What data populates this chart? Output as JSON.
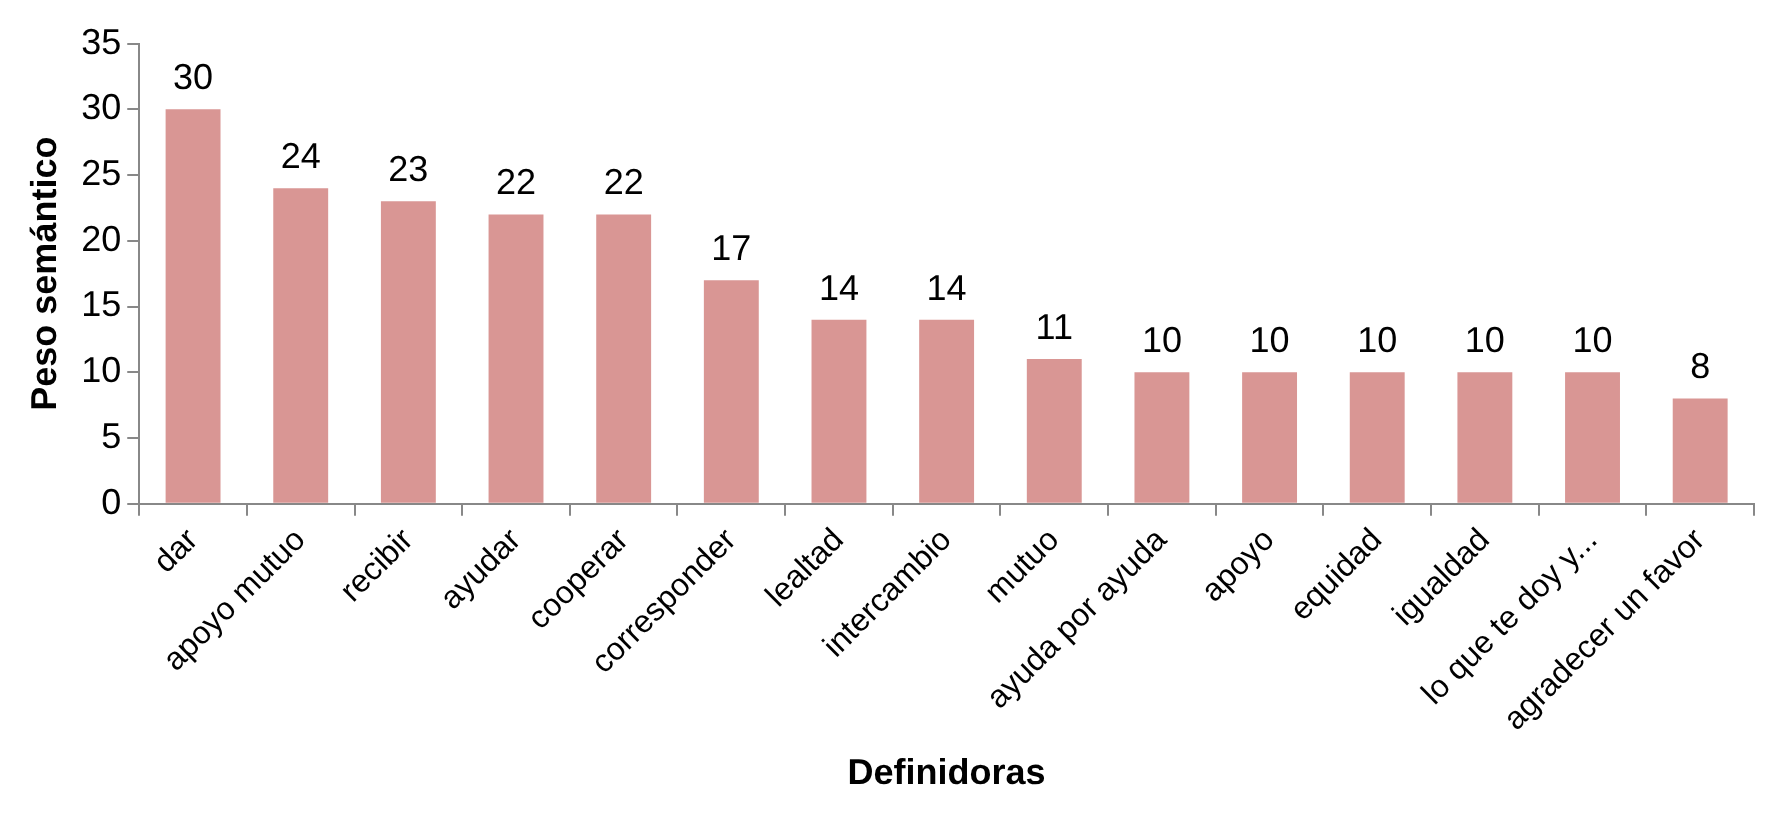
{
  "chart_data": {
    "type": "bar",
    "xlabel": "Definidoras",
    "ylabel": "Peso semántico",
    "categories": [
      "dar",
      "apoyo mutuo",
      "recibir",
      "ayudar",
      "cooperar",
      "corresponder",
      "lealtad",
      "intercambio",
      "mutuo",
      "ayuda por ayuda",
      "apoyo",
      "equidad",
      "igualdad",
      "lo que te doy y...",
      "agradecer un favor"
    ],
    "values": [
      30,
      24,
      23,
      22,
      22,
      17,
      14,
      14,
      11,
      10,
      10,
      10,
      10,
      10,
      8
    ],
    "color": "#d99694",
    "ylim": [
      0,
      35
    ],
    "yticks": [
      0,
      5,
      10,
      15,
      20,
      25,
      30,
      35
    ],
    "data_labels": true,
    "legend": false
  }
}
